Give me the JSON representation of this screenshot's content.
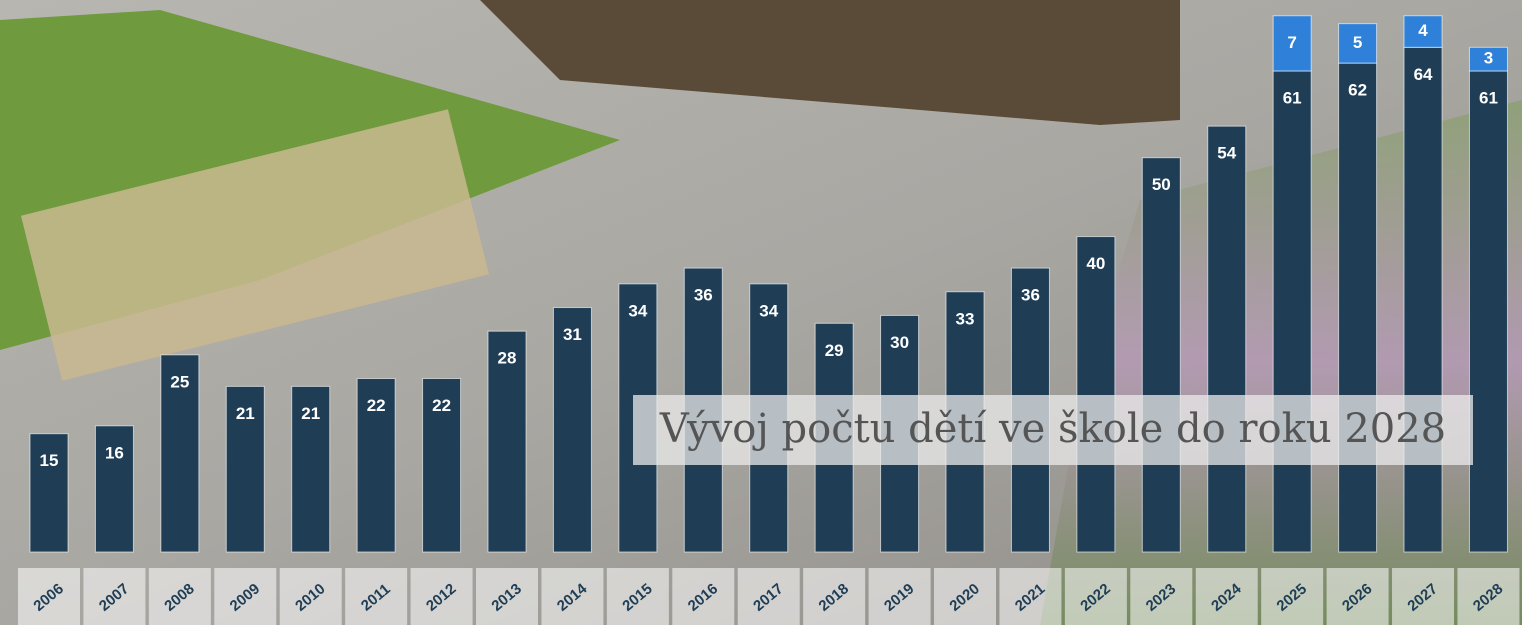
{
  "chart_data": {
    "type": "stacked_bar",
    "title": "Vývoj počtu dětí ve škole do roku 2028",
    "categories": [
      "2006",
      "2007",
      "2008",
      "2009",
      "2010",
      "2011",
      "2012",
      "2013",
      "2014",
      "2015",
      "2016",
      "2017",
      "2018",
      "2019",
      "2020",
      "2021",
      "2022",
      "2023",
      "2024",
      "2025",
      "2026",
      "2027",
      "2028"
    ],
    "series": [
      {
        "color": "#1f3e56",
        "values": [
          15,
          16,
          25,
          21,
          21,
          22,
          22,
          28,
          31,
          34,
          36,
          34,
          29,
          30,
          33,
          36,
          40,
          50,
          54,
          61,
          62,
          64,
          61
        ]
      },
      {
        "color": "#2f80d8",
        "values": [
          null,
          null,
          null,
          null,
          null,
          null,
          null,
          null,
          null,
          null,
          null,
          null,
          null,
          null,
          null,
          null,
          null,
          null,
          null,
          7,
          5,
          4,
          3
        ]
      }
    ],
    "ylim": [
      0,
      70
    ]
  }
}
